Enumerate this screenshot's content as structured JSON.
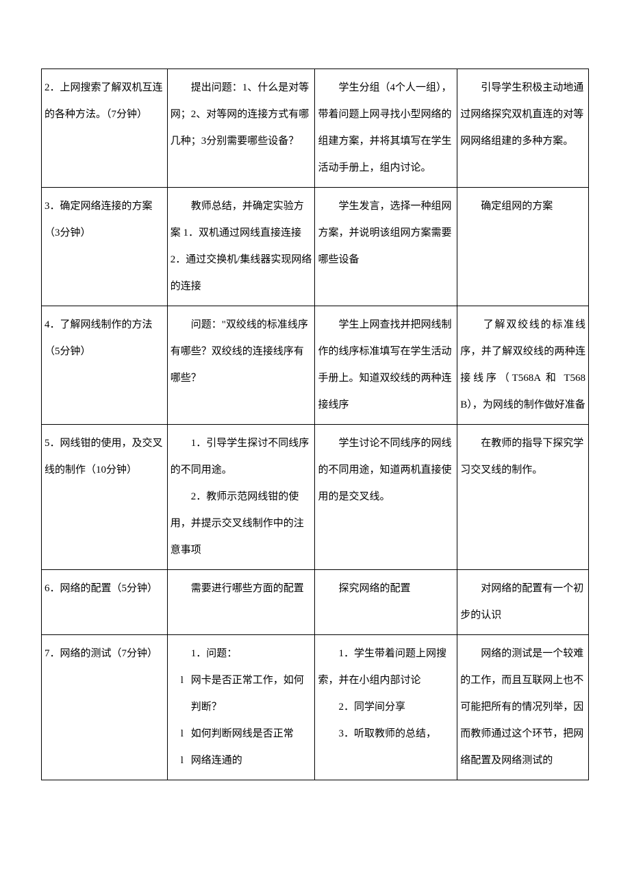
{
  "colors": {
    "text": "#000000",
    "border": "#000000",
    "background": "#ffffff"
  },
  "typography": {
    "font_family": "SimSun",
    "font_size_pt": 11,
    "line_height": 2.6
  },
  "table": {
    "column_widths_pct": [
      23,
      27,
      26,
      24
    ],
    "rows": [
      {
        "c1": "2．上网搜索了解双机互连的各种方法。（7分钟）",
        "c2": "　　提出问题：1、什么是对等网；2、对等网的连接方式有哪几种；3分别需要哪些设备？",
        "c3": "　　学生分组（4个人一组），带着问题上网寻找小型网络的组建方案，并将其填写在学生活动手册上，组内讨论。",
        "c4": "　　引导学生积极主动地通过网络探究双机直连的对等网网络组建的多种方案。"
      },
      {
        "c1": "3．确定网络连接的方案（3分钟）",
        "c2": "　　教师总结，并确定实验方案 1．双机通过网线直接连接 2．通过交换机/集线器实现网络的连接",
        "c3": "　　学生发言，选择一种组网方案，并说明该组网方案需要哪些设备",
        "c4": "　　确定组网的方案"
      },
      {
        "c1": "4．了解网线制作的方法（5分钟）",
        "c2": "　　问题：\"双绞线的标准线序有哪些？双绞线的连接线序有哪些？",
        "c3": "　　学生上网查找并把网线制作的线序标准填写在学生活动手册上。知道双绞线的两种连接线序",
        "c4": "　　了解双绞线的标准线序，并了解双绞线的两种连接线序（T568A 和 T568B），为网线的制作做好准备"
      },
      {
        "c1": "5．网线钳的使用，及交叉线的制作（10分钟）",
        "c2": "　　1．引导学生探讨不同线序的不同用途。\n　　2．教师示范网线钳的使用，并提示交叉线制作中的注意事项",
        "c3": "　　学生讨论不同线序的网线的不同用途，知道两机直接使用的是交叉线。",
        "c4": "　　在教师的指导下探究学习交叉线的制作。"
      },
      {
        "c1": "6．网络的配置（5分钟）",
        "c2": "　　需要进行哪些方面的配置",
        "c3": "　　探究网络的配置",
        "c4": "　　对网络的配置有一个初步的认识"
      },
      {
        "c1": "7．网络的测试（7分钟）",
        "c2_lines": [
          {
            "type": "plain",
            "text": "　　1．问题："
          },
          {
            "type": "bullet",
            "text": "网卡是否正常工作，如何判断？"
          },
          {
            "type": "bullet",
            "text": "如何判断网线是否正常"
          },
          {
            "type": "bullet",
            "text": "网络连通的"
          }
        ],
        "c3": "　　1．学生带着问题上网搜索，并在小组内部讨论\n　　2．同学间分享\n　　3．听取教师的总结，",
        "c4": "　　网络的测试是一个较难的工作，而且互联网上也不可能把所有的情况列举，因而教师通过这个环节，把网络配置及网络测试的"
      }
    ]
  }
}
